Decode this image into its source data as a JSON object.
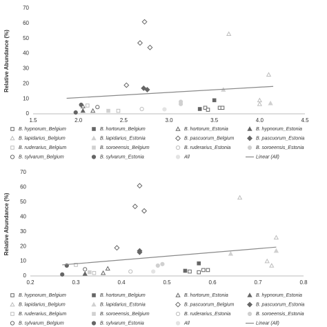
{
  "chart_data": [
    {
      "type": "scatter",
      "y_label": "Relative Abundance (%)",
      "xlim": [
        1.5,
        4.5
      ],
      "xticks": [
        1.5,
        {
          "value": 2,
          "label": "2.0"
        },
        2.5,
        {
          "value": 3,
          "label": "3.0"
        },
        3.5,
        {
          "value": 4,
          "label": "4.0"
        },
        4.5
      ],
      "ylim": [
        0,
        70
      ],
      "yticks": [
        0,
        10,
        20,
        30,
        40,
        50,
        60,
        70
      ],
      "series": [
        {
          "name": "B. hypnorum_Belgium",
          "marker": "square",
          "filled": false,
          "color": "#666666",
          "x": [
            3.4,
            3.43,
            3.56,
            3.59
          ],
          "values": [
            4,
            2.7,
            4,
            4
          ]
        },
        {
          "name": "B. hortorum_Belgium",
          "marker": "square",
          "filled": true,
          "color": "#666666",
          "x": [
            3.34,
            3.5
          ],
          "values": [
            3.2,
            9
          ]
        },
        {
          "name": "B. hortorum_Estonia",
          "marker": "triangle",
          "filled": false,
          "color": "#666666",
          "x": [
            2.05,
            2.16
          ],
          "values": [
            5,
            2
          ]
        },
        {
          "name": "B. hypnorum_Estonia",
          "marker": "triangle",
          "filled": true,
          "color": "#666666",
          "x": [
            2.05
          ],
          "values": [
            2
          ]
        },
        {
          "name": "B. lapidarius_Belgium",
          "marker": "triangle",
          "filled": false,
          "color": "#bdbdbd",
          "x": [
            3.66,
            4.0,
            4.0,
            4.1
          ],
          "values": [
            53,
            9,
            6.5,
            26
          ]
        },
        {
          "name": "B. lapidarius_Estonia",
          "marker": "triangle",
          "filled": true,
          "color": "#d0d0d0",
          "x": [
            3.6,
            4.12
          ],
          "values": [
            16,
            7
          ]
        },
        {
          "name": "B. pascuorum_Belgium",
          "marker": "diamond",
          "filled": false,
          "color": "#666666",
          "x": [
            2.53,
            2.68,
            2.73,
            2.79
          ],
          "values": [
            19,
            47,
            61,
            44
          ]
        },
        {
          "name": "B. pascuorum_Estonia",
          "marker": "diamond",
          "filled": true,
          "color": "#666666",
          "x": [
            2.72,
            2.76
          ],
          "values": [
            17,
            16
          ]
        },
        {
          "name": "B. ruderarius_Belgium",
          "marker": "square",
          "filled": false,
          "color": "#bdbdbd",
          "x": [
            2.1,
            2.44
          ],
          "values": [
            5.5,
            2
          ]
        },
        {
          "name": "B. soroeensis_Belgium",
          "marker": "square",
          "filled": true,
          "color": "#d0d0d0",
          "x": [
            2.33
          ],
          "values": [
            2
          ]
        },
        {
          "name": "B. ruderarius_Estonia",
          "marker": "circle",
          "filled": false,
          "color": "#bdbdbd",
          "x": [
            2.7
          ],
          "values": [
            3.2
          ]
        },
        {
          "name": "B. soroeensis_Estonia",
          "marker": "circle",
          "filled": true,
          "color": "#d0d0d0",
          "x": [
            3.13,
            3.13
          ],
          "values": [
            8,
            6.5
          ]
        },
        {
          "name": "B. sylvarum_Belgium",
          "marker": "circle",
          "filled": false,
          "color": "#666666",
          "x": [
            2.21
          ],
          "values": [
            4.5
          ]
        },
        {
          "name": "B. sylvarum_Estonia",
          "marker": "circle",
          "filled": true,
          "color": "#666666",
          "x": [
            1.97,
            2.03
          ],
          "values": [
            0.9,
            6
          ]
        },
        {
          "name": "All",
          "marker": "circle",
          "filled": true,
          "color": "#e3e3e3",
          "x": [
            2.95
          ],
          "values": [
            3
          ]
        },
        {
          "name": "Linear (All)",
          "marker": "line",
          "color": "#888888",
          "x": [
            1.87,
            4.15
          ],
          "values": [
            10.3,
            18.2
          ]
        }
      ]
    },
    {
      "type": "scatter",
      "y_label": "Relative Abundance (%)",
      "xlim": [
        0.2,
        0.8
      ],
      "xticks": [
        0.2,
        0.3,
        0.4,
        0.5,
        0.6,
        0.7,
        0.8
      ],
      "ylim": [
        0,
        70
      ],
      "yticks": [
        0,
        10,
        20,
        30,
        40,
        50,
        60,
        70
      ],
      "series": [
        {
          "name": "B. hypnorum_Belgium",
          "marker": "square",
          "filled": false,
          "color": "#666666",
          "x": [
            0.55,
            0.57,
            0.58,
            0.59
          ],
          "values": [
            3,
            2.5,
            4,
            4
          ]
        },
        {
          "name": "B. hortorum_Belgium",
          "marker": "square",
          "filled": true,
          "color": "#666666",
          "x": [
            0.54,
            0.57
          ],
          "values": [
            3.5,
            8.5
          ]
        },
        {
          "name": "B. hortorum_Estonia",
          "marker": "triangle",
          "filled": false,
          "color": "#666666",
          "x": [
            0.37,
            0.36
          ],
          "values": [
            5,
            2
          ]
        },
        {
          "name": "B. hypnorum_Estonia",
          "marker": "triangle",
          "filled": true,
          "color": "#666666",
          "x": [
            0.32
          ],
          "values": [
            1.5
          ]
        },
        {
          "name": "B. lapidarius_Belgium",
          "marker": "triangle",
          "filled": false,
          "color": "#bdbdbd",
          "x": [
            0.66,
            0.74,
            0.72,
            0.73
          ],
          "values": [
            53,
            26,
            10,
            7
          ]
        },
        {
          "name": "B. lapidarius_Estonia",
          "marker": "triangle",
          "filled": true,
          "color": "#d0d0d0",
          "x": [
            0.64,
            0.74
          ],
          "values": [
            15,
            17
          ]
        },
        {
          "name": "B. pascuorum_Belgium",
          "marker": "diamond",
          "filled": false,
          "color": "#666666",
          "x": [
            0.39,
            0.43,
            0.44,
            0.45
          ],
          "values": [
            19,
            47,
            61,
            44
          ]
        },
        {
          "name": "B. pascuorum_Estonia",
          "marker": "diamond",
          "filled": true,
          "color": "#666666",
          "x": [
            0.44,
            0.44
          ],
          "values": [
            17,
            16
          ]
        },
        {
          "name": "B. ruderarius_Belgium",
          "marker": "square",
          "filled": false,
          "color": "#bdbdbd",
          "x": [
            0.3,
            0.34
          ],
          "values": [
            7.5,
            2
          ]
        },
        {
          "name": "B. soroeensis_Belgium",
          "marker": "square",
          "filled": true,
          "color": "#d0d0d0",
          "x": [
            0.33
          ],
          "values": [
            2.5
          ]
        },
        {
          "name": "B. ruderarius_Estonia",
          "marker": "circle",
          "filled": false,
          "color": "#bdbdbd",
          "x": [
            0.42
          ],
          "values": [
            3
          ]
        },
        {
          "name": "B. soroeensis_Estonia",
          "marker": "circle",
          "filled": true,
          "color": "#d0d0d0",
          "x": [
            0.48,
            0.49
          ],
          "values": [
            7,
            8
          ]
        },
        {
          "name": "B. sylvarum_Belgium",
          "marker": "circle",
          "filled": false,
          "color": "#666666",
          "x": [
            0.32
          ],
          "values": [
            4.5
          ]
        },
        {
          "name": "B. sylvarum_Estonia",
          "marker": "circle",
          "filled": true,
          "color": "#666666",
          "x": [
            0.27,
            0.28
          ],
          "values": [
            1,
            7
          ]
        },
        {
          "name": "All",
          "marker": "circle",
          "filled": true,
          "color": "#e3e3e3",
          "x": [
            0.47
          ],
          "values": [
            3
          ]
        },
        {
          "name": "Linear (All)",
          "marker": "line",
          "color": "#888888",
          "x": [
            0.27,
            0.74
          ],
          "values": [
            7.5,
            19.5
          ]
        }
      ]
    }
  ]
}
